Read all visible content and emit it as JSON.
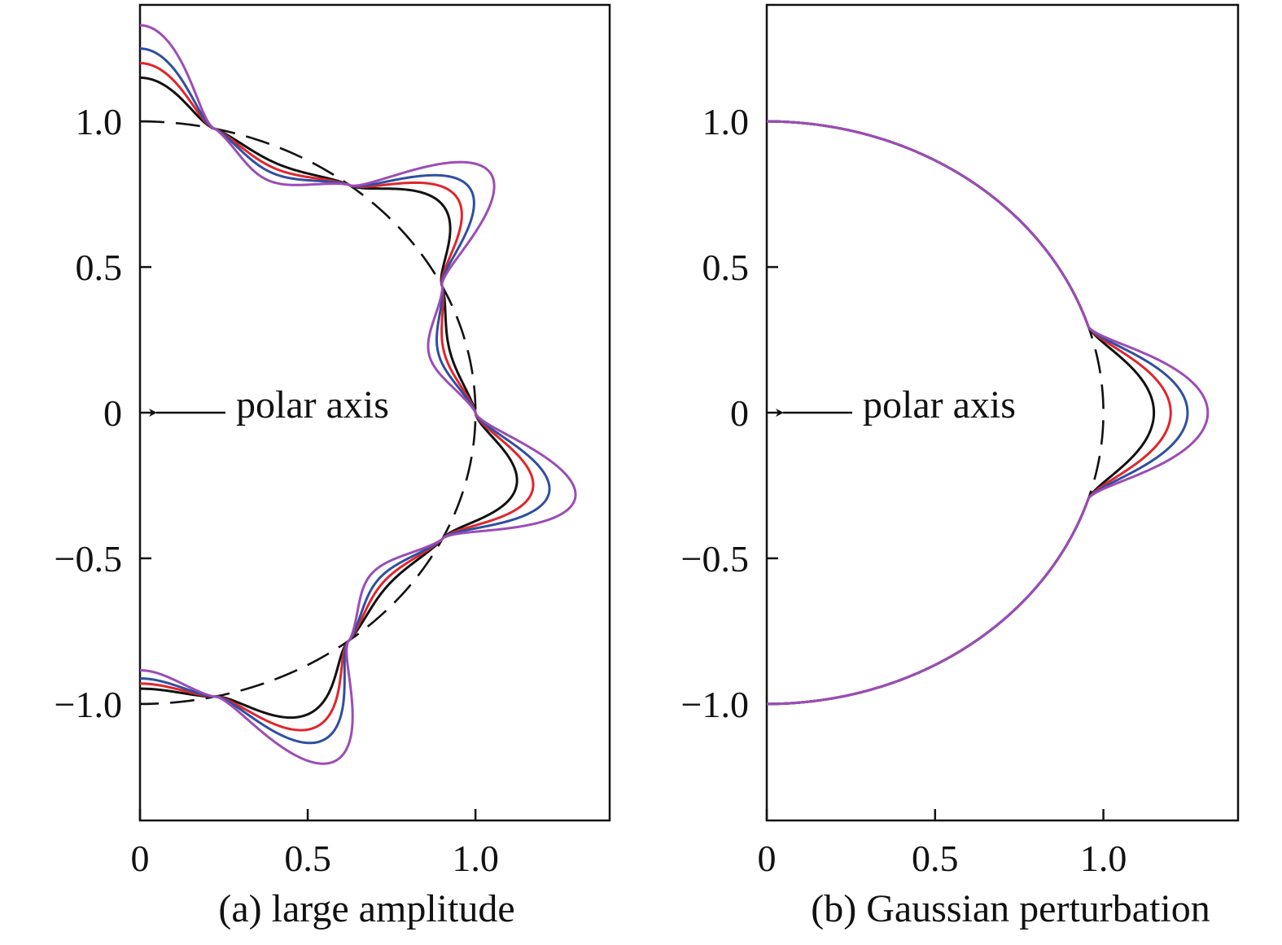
{
  "chart_data": [
    {
      "type": "line",
      "caption": "(a) large amplitude",
      "annotation": "polar axis",
      "xlim": [
        0,
        1.4
      ],
      "ylim": [
        -1.4,
        1.4
      ],
      "xticks": [
        0,
        0.5,
        1.0
      ],
      "xtick_labels": [
        "0",
        "0.5",
        "1.0"
      ],
      "yticks": [
        1.0,
        0.5,
        0,
        -0.5,
        -1.0
      ],
      "ytick_labels": [
        "1.0",
        "0.5",
        "0",
        "−0.5",
        "−1.0"
      ],
      "grid": false,
      "shape": {
        "kind": "lobed",
        "lobes": 7
      },
      "series": [
        {
          "style": "dashed",
          "color": "#111111",
          "amplitude": 0.0
        },
        {
          "style": "solid",
          "color": "#111111",
          "amplitude": 0.15
        },
        {
          "style": "solid",
          "color": "#e0262b",
          "amplitude": 0.2
        },
        {
          "style": "solid",
          "color": "#2f4fa0",
          "amplitude": 0.25
        },
        {
          "style": "solid",
          "color": "#9b4db5",
          "amplitude": 0.33
        }
      ]
    },
    {
      "type": "line",
      "caption": "(b) Gaussian perturbation",
      "annotation": "polar axis",
      "xlim": [
        0,
        1.4
      ],
      "ylim": [
        -1.4,
        1.4
      ],
      "xticks": [
        0,
        0.5,
        1.0
      ],
      "xtick_labels": [
        "0",
        "0.5",
        "1.0"
      ],
      "yticks": [
        1.0,
        0.5,
        0,
        -0.5,
        -1.0
      ],
      "ytick_labels": [
        "1.0",
        "0.5",
        "0",
        "−0.5",
        "−1.0"
      ],
      "grid": false,
      "shape": {
        "kind": "bump",
        "bump_half_width": 0.3
      },
      "series": [
        {
          "style": "dashed",
          "color": "#111111",
          "amplitude": 0.0
        },
        {
          "style": "solid",
          "color": "#111111",
          "amplitude": 0.15
        },
        {
          "style": "solid",
          "color": "#e0262b",
          "amplitude": 0.2
        },
        {
          "style": "solid",
          "color": "#2f4fa0",
          "amplitude": 0.25
        },
        {
          "style": "solid",
          "color": "#9b4db5",
          "amplitude": 0.31
        }
      ]
    }
  ]
}
